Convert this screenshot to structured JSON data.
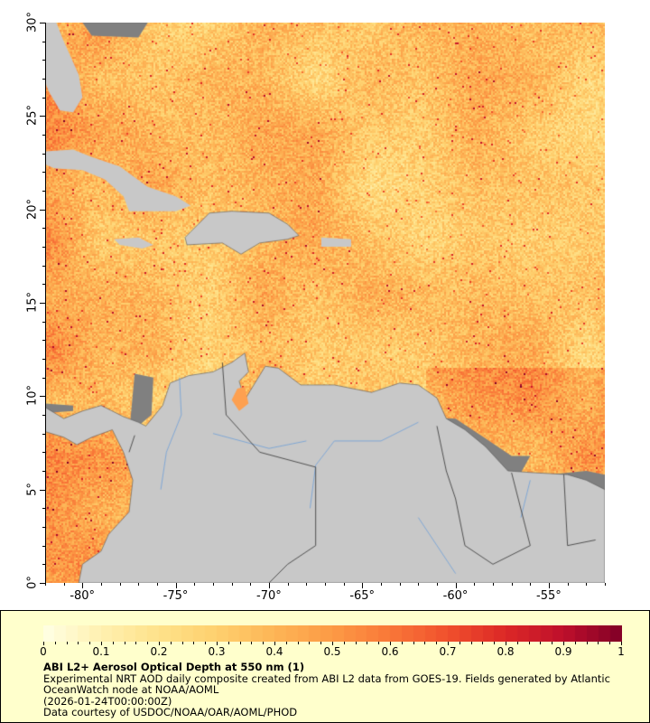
{
  "map": {
    "lon_range": [
      -82,
      -52
    ],
    "lat_range": [
      0,
      30
    ],
    "lon_ticks": [
      {
        "value": -80,
        "label": "-80°"
      },
      {
        "value": -75,
        "label": "-75°"
      },
      {
        "value": -70,
        "label": "-70°"
      },
      {
        "value": -65,
        "label": "-65°"
      },
      {
        "value": -60,
        "label": "-60°"
      },
      {
        "value": -55,
        "label": "-55°"
      }
    ],
    "lat_ticks": [
      {
        "value": 0,
        "label": "0°"
      },
      {
        "value": 5,
        "label": "5°"
      },
      {
        "value": 10,
        "label": "10°"
      },
      {
        "value": 15,
        "label": "15°"
      },
      {
        "value": 20,
        "label": "20°"
      },
      {
        "value": 25,
        "label": "25°"
      },
      {
        "value": 30,
        "label": "30°"
      }
    ],
    "land_color": "#c8c8c8",
    "nodata_color": "#808080",
    "river_color": "#6fa0d8"
  },
  "legend": {
    "colorbar": {
      "range": [
        0,
        1
      ],
      "tick_labels": [
        "0",
        "0.1",
        "0.2",
        "0.3",
        "0.4",
        "0.5",
        "0.6",
        "0.7",
        "0.8",
        "0.9",
        "1"
      ],
      "colors": [
        "#ffffe5",
        "#fff0b0",
        "#fee28a",
        "#fed06e",
        "#fdb556",
        "#fc9a45",
        "#f97738",
        "#f0502d",
        "#dc2826",
        "#be0f2c",
        "#800026"
      ]
    },
    "title": "ABI L2+ Aerosol Optical Depth at 550 nm (1)",
    "description_line1": "Experimental NRT AOD daily composite created from ABI L2 data from GOES-19. Fields generated by Atlantic",
    "description_line2": "OceanWatch node at NOAA/AOML",
    "time": "(2026-01-24T00:00:00Z)",
    "credit": "Data courtesy of USDOC/NOAA/OAR/AOML/PHOD"
  }
}
